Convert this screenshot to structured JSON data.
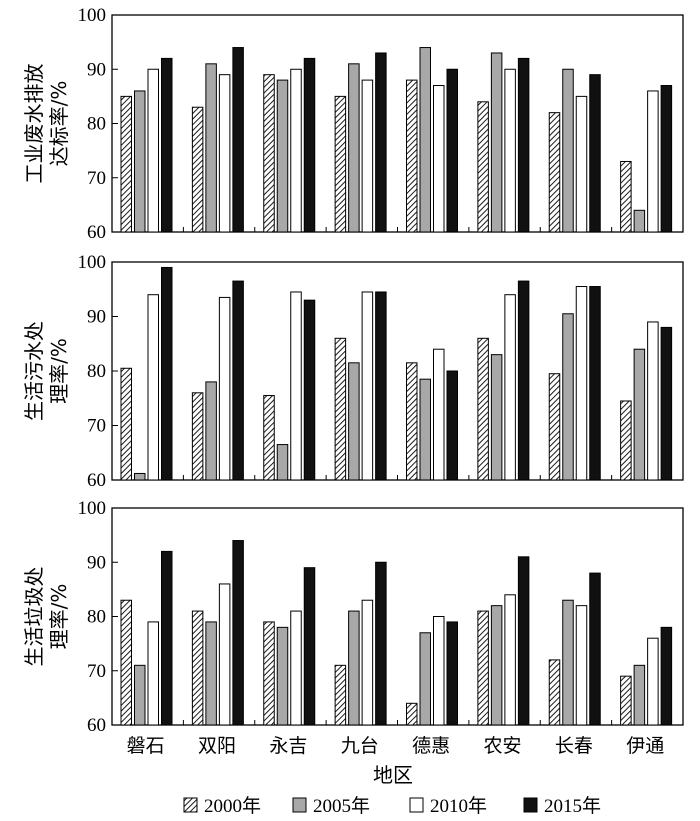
{
  "chart_data": [
    {
      "type": "bar",
      "ylabel": [
        "工业废水排放",
        "达标率/%"
      ],
      "ylim": [
        60,
        100
      ],
      "yticks": [
        60,
        70,
        80,
        90,
        100
      ],
      "categories": [
        "磐石",
        "双阳",
        "永吉",
        "九台",
        "德惠",
        "农安",
        "长春",
        "伊通"
      ],
      "series": [
        {
          "name": "2000年",
          "values": [
            85,
            83,
            89,
            85,
            88,
            84,
            82,
            73
          ]
        },
        {
          "name": "2005年",
          "values": [
            86,
            91,
            88,
            91,
            94,
            93,
            90,
            64
          ]
        },
        {
          "name": "2010年",
          "values": [
            90,
            89,
            90,
            88,
            87,
            90,
            85,
            86
          ]
        },
        {
          "name": "2015年",
          "values": [
            92,
            94,
            92,
            93,
            90,
            92,
            89,
            87
          ]
        }
      ]
    },
    {
      "type": "bar",
      "ylabel": [
        "生活污水处",
        "理率/%"
      ],
      "ylim": [
        60,
        100
      ],
      "yticks": [
        60,
        70,
        80,
        90,
        100
      ],
      "categories": [
        "磐石",
        "双阳",
        "永吉",
        "九台",
        "德惠",
        "农安",
        "长春",
        "伊通"
      ],
      "series": [
        {
          "name": "2000年",
          "values": [
            80.5,
            76,
            75.5,
            86,
            81.5,
            86,
            79.5,
            74.5
          ]
        },
        {
          "name": "2005年",
          "values": [
            61.2,
            78,
            66.5,
            81.5,
            78.5,
            83,
            90.5,
            84
          ]
        },
        {
          "name": "2010年",
          "values": [
            94,
            93.5,
            94.5,
            94.5,
            84,
            94,
            95.5,
            89
          ]
        },
        {
          "name": "2015年",
          "values": [
            99,
            96.5,
            93,
            94.5,
            80,
            96.5,
            95.5,
            88
          ]
        }
      ]
    },
    {
      "type": "bar",
      "ylabel": [
        "生活垃圾处",
        "理率/%"
      ],
      "ylim": [
        60,
        100
      ],
      "yticks": [
        60,
        70,
        80,
        90,
        100
      ],
      "categories": [
        "磐石",
        "双阳",
        "永吉",
        "九台",
        "德惠",
        "农安",
        "长春",
        "伊通"
      ],
      "series": [
        {
          "name": "2000年",
          "values": [
            83,
            81,
            79,
            71,
            64,
            81,
            72,
            69
          ]
        },
        {
          "name": "2005年",
          "values": [
            71,
            79,
            78,
            81,
            77,
            82,
            83,
            71
          ]
        },
        {
          "name": "2010年",
          "values": [
            79,
            86,
            81,
            83,
            80,
            84,
            82,
            76
          ]
        },
        {
          "name": "2015年",
          "values": [
            92,
            94,
            89,
            90,
            79,
            91,
            88,
            78
          ]
        }
      ]
    }
  ],
  "xlabel": "地区",
  "legend": [
    {
      "name": "2000年",
      "style": "hatch"
    },
    {
      "name": "2005年",
      "style": "gray"
    },
    {
      "name": "2010年",
      "style": "white"
    },
    {
      "name": "2015年",
      "style": "black"
    }
  ],
  "colors": {
    "gray": "#a8a8a8",
    "black": "#111111",
    "white": "#ffffff",
    "hatch": "#000000"
  }
}
